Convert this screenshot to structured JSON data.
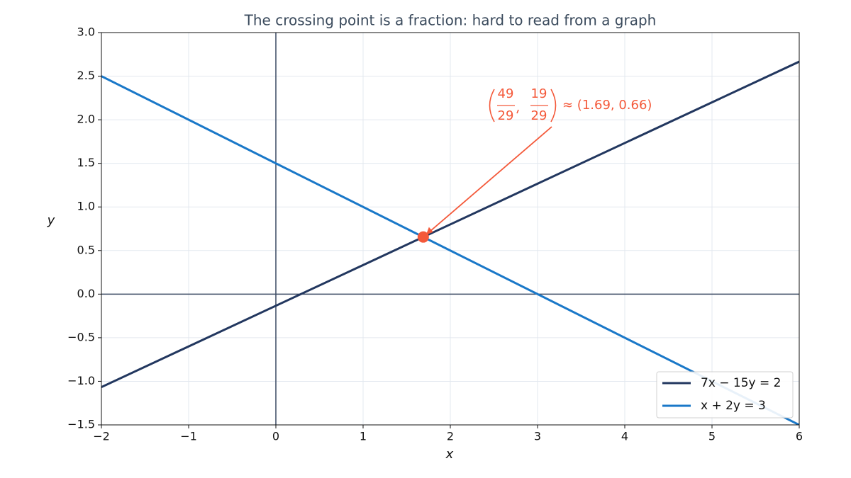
{
  "chart_data": {
    "type": "line",
    "title": "The crossing point is a fraction: hard to read from a graph",
    "x_label": "x",
    "y_label": "y",
    "x": [
      -2,
      6
    ],
    "series": [
      {
        "name": "7x − 15y = 2",
        "color": "#22375f",
        "values": [
          -1.0667,
          2.6667
        ]
      },
      {
        "name": "x + 2y = 3",
        "color": "#1a78c8",
        "values": [
          2.5,
          -1.5
        ]
      }
    ],
    "xlim": [
      -2,
      6
    ],
    "xticks": [
      {
        "value": -2,
        "label": "−2"
      },
      {
        "value": -1,
        "label": "−1"
      },
      0,
      1,
      2,
      3,
      4,
      5,
      6
    ],
    "ylim": [
      -1.5,
      3
    ],
    "yticks": [
      {
        "value": -1.5,
        "label": "−1.5"
      },
      {
        "value": -1,
        "label": "−1.0"
      },
      {
        "value": -0.5,
        "label": "−0.5"
      },
      {
        "value": 0,
        "label": "0.0"
      },
      0.5,
      {
        "value": 1,
        "label": "1.0"
      },
      1.5,
      {
        "value": 2,
        "label": "2.0"
      },
      2.5,
      {
        "value": 3,
        "label": "3.0"
      }
    ],
    "grid": true,
    "zero_lines": true,
    "legend": "lower right",
    "annotation": {
      "x": 1.6897,
      "y": 0.6552,
      "color": "#f4593a",
      "x_numerator": "49",
      "x_denominator": "29",
      "y_numerator": "19",
      "y_denominator": "29",
      "label": "≈ (1.69,  0.66)"
    }
  }
}
